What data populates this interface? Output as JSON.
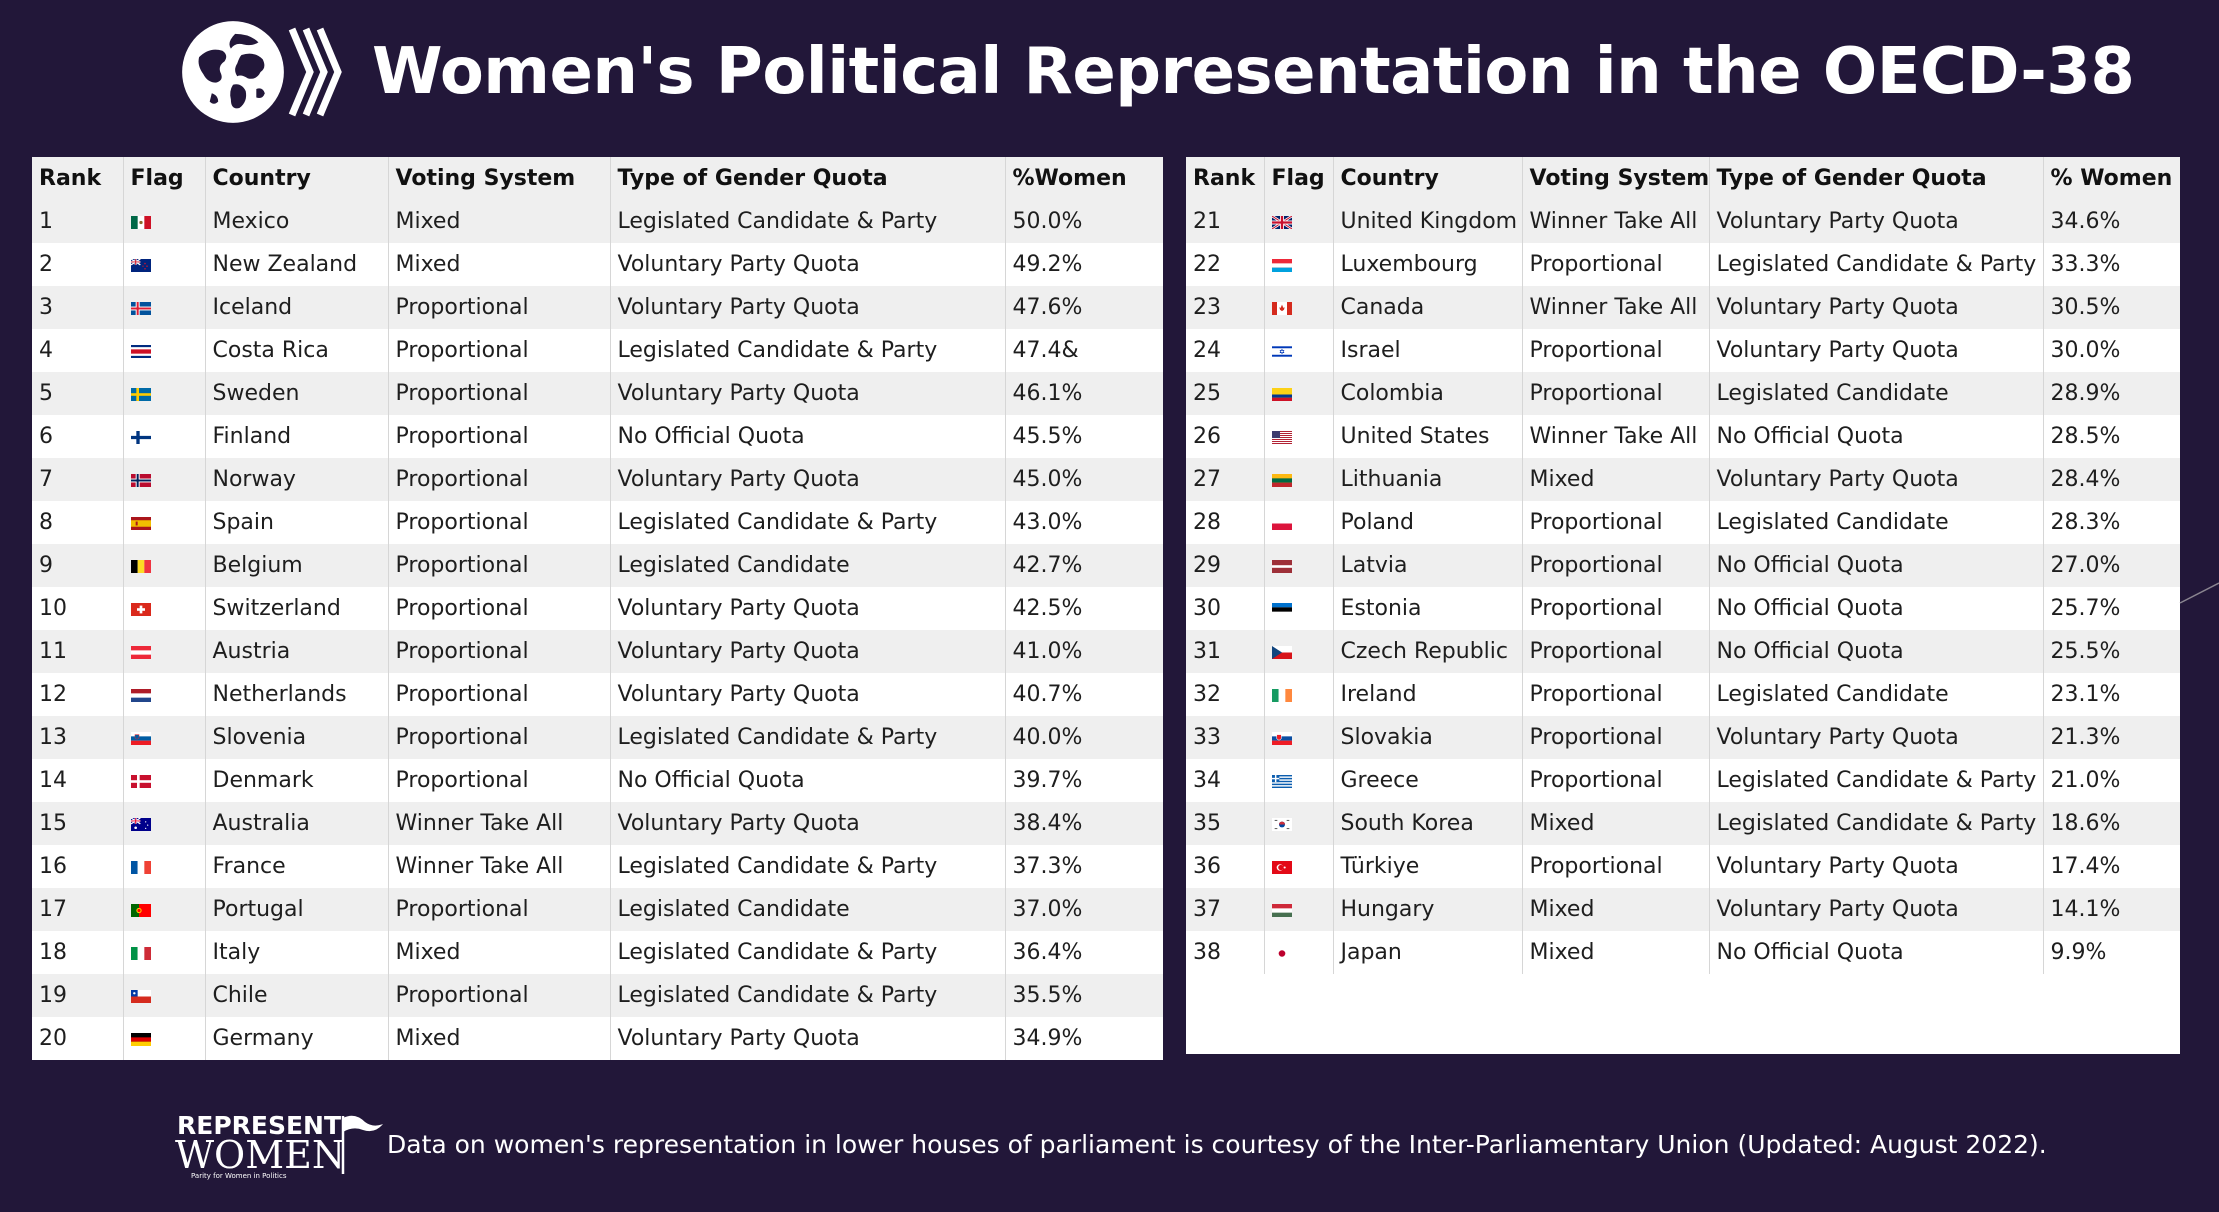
{
  "title": "Women's Political Representation in the OECD-38",
  "brand": {
    "name_line1": "REPRESENT",
    "name_line2": "WOMEN",
    "tagline": "Parity for Women in Politics"
  },
  "colors": {
    "background": "#221739",
    "row_alt": "#efefef"
  },
  "footnote": "Data on women's representation in lower houses of parliament is courtesy of the Inter-Parliamentary Union (Updated: August 2022).",
  "left_table": {
    "headers": [
      "Rank",
      "Flag",
      "Country",
      "Voting System",
      "Type of Gender Quota",
      "%Women"
    ],
    "rows": [
      {
        "rank": "1",
        "flag": "mx",
        "country": "Mexico",
        "system": "Mixed",
        "quota": "Legislated Candidate & Party",
        "pct": "50.0%"
      },
      {
        "rank": "2",
        "flag": "nz",
        "country": "New Zealand",
        "system": "Mixed",
        "quota": "Voluntary Party Quota",
        "pct": "49.2%"
      },
      {
        "rank": "3",
        "flag": "is",
        "country": "Iceland",
        "system": "Proportional",
        "quota": "Voluntary Party Quota",
        "pct": "47.6%"
      },
      {
        "rank": "4",
        "flag": "cr",
        "country": "Costa Rica",
        "system": "Proportional",
        "quota": "Legislated Candidate & Party",
        "pct": "47.4&"
      },
      {
        "rank": "5",
        "flag": "se",
        "country": "Sweden",
        "system": "Proportional",
        "quota": "Voluntary Party Quota",
        "pct": "46.1%"
      },
      {
        "rank": "6",
        "flag": "fi",
        "country": "Finland",
        "system": "Proportional",
        "quota": "No Official Quota",
        "pct": "45.5%"
      },
      {
        "rank": "7",
        "flag": "no",
        "country": "Norway",
        "system": "Proportional",
        "quota": "Voluntary Party Quota",
        "pct": "45.0%"
      },
      {
        "rank": "8",
        "flag": "es",
        "country": "Spain",
        "system": "Proportional",
        "quota": "Legislated Candidate & Party",
        "pct": "43.0%"
      },
      {
        "rank": "9",
        "flag": "be",
        "country": "Belgium",
        "system": "Proportional",
        "quota": "Legislated Candidate",
        "pct": "42.7%"
      },
      {
        "rank": "10",
        "flag": "ch",
        "country": "Switzerland",
        "system": "Proportional",
        "quota": "Voluntary Party Quota",
        "pct": "42.5%"
      },
      {
        "rank": "11",
        "flag": "at",
        "country": "Austria",
        "system": "Proportional",
        "quota": "Voluntary Party Quota",
        "pct": "41.0%"
      },
      {
        "rank": "12",
        "flag": "nl",
        "country": "Netherlands",
        "system": "Proportional",
        "quota": "Voluntary Party Quota",
        "pct": "40.7%"
      },
      {
        "rank": "13",
        "flag": "si",
        "country": "Slovenia",
        "system": "Proportional",
        "quota": "Legislated Candidate & Party",
        "pct": "40.0%"
      },
      {
        "rank": "14",
        "flag": "dk",
        "country": "Denmark",
        "system": "Proportional",
        "quota": "No Official Quota",
        "pct": "39.7%"
      },
      {
        "rank": "15",
        "flag": "au",
        "country": "Australia",
        "system": "Winner Take All",
        "quota": "Voluntary Party Quota",
        "pct": "38.4%"
      },
      {
        "rank": "16",
        "flag": "fr",
        "country": "France",
        "system": "Winner Take All",
        "quota": "Legislated Candidate & Party",
        "pct": "37.3%"
      },
      {
        "rank": "17",
        "flag": "pt",
        "country": "Portugal",
        "system": "Proportional",
        "quota": "Legislated Candidate",
        "pct": "37.0%"
      },
      {
        "rank": "18",
        "flag": "it",
        "country": "Italy",
        "system": "Mixed",
        "quota": "Legislated Candidate & Party",
        "pct": "36.4%"
      },
      {
        "rank": "19",
        "flag": "cl",
        "country": "Chile",
        "system": "Proportional",
        "quota": "Legislated Candidate & Party",
        "pct": "35.5%"
      },
      {
        "rank": "20",
        "flag": "de",
        "country": "Germany",
        "system": "Mixed",
        "quota": "Voluntary Party Quota",
        "pct": "34.9%"
      }
    ]
  },
  "right_table": {
    "headers": [
      "Rank",
      "Flag",
      "Country",
      "Voting System",
      "Type of Gender Quota",
      "% Women"
    ],
    "rows": [
      {
        "rank": "21",
        "flag": "gb",
        "country": "United Kingdom",
        "system": "Winner Take All",
        "quota": "Voluntary Party Quota",
        "pct": "34.6%"
      },
      {
        "rank": "22",
        "flag": "lu",
        "country": "Luxembourg",
        "system": "Proportional",
        "quota": "Legislated Candidate & Party",
        "pct": "33.3%"
      },
      {
        "rank": "23",
        "flag": "ca",
        "country": "Canada",
        "system": "Winner Take All",
        "quota": "Voluntary Party Quota",
        "pct": "30.5%"
      },
      {
        "rank": "24",
        "flag": "il",
        "country": "Israel",
        "system": "Proportional",
        "quota": "Voluntary Party Quota",
        "pct": "30.0%"
      },
      {
        "rank": "25",
        "flag": "co",
        "country": "Colombia",
        "system": "Proportional",
        "quota": "Legislated Candidate",
        "pct": "28.9%"
      },
      {
        "rank": "26",
        "flag": "us",
        "country": "United States",
        "system": "Winner Take All",
        "quota": "No Official Quota",
        "pct": "28.5%"
      },
      {
        "rank": "27",
        "flag": "lt",
        "country": "Lithuania",
        "system": "Mixed",
        "quota": "Voluntary Party Quota",
        "pct": "28.4%"
      },
      {
        "rank": "28",
        "flag": "pl",
        "country": "Poland",
        "system": "Proportional",
        "quota": "Legislated Candidate",
        "pct": "28.3%"
      },
      {
        "rank": "29",
        "flag": "lv",
        "country": "Latvia",
        "system": "Proportional",
        "quota": "No Official Quota",
        "pct": "27.0%"
      },
      {
        "rank": "30",
        "flag": "ee",
        "country": "Estonia",
        "system": "Proportional",
        "quota": "No Official Quota",
        "pct": "25.7%"
      },
      {
        "rank": "31",
        "flag": "cz",
        "country": "Czech Republic",
        "system": "Proportional",
        "quota": "No Official Quota",
        "pct": "25.5%"
      },
      {
        "rank": "32",
        "flag": "ie",
        "country": "Ireland",
        "system": "Proportional",
        "quota": "Legislated Candidate",
        "pct": "23.1%"
      },
      {
        "rank": "33",
        "flag": "sk",
        "country": "Slovakia",
        "system": "Proportional",
        "quota": "Voluntary Party Quota",
        "pct": "21.3%"
      },
      {
        "rank": "34",
        "flag": "gr",
        "country": "Greece",
        "system": "Proportional",
        "quota": "Legislated Candidate & Party",
        "pct": "21.0%"
      },
      {
        "rank": "35",
        "flag": "kr",
        "country": "South Korea",
        "system": "Mixed",
        "quota": "Legislated Candidate & Party",
        "pct": "18.6%"
      },
      {
        "rank": "36",
        "flag": "tr",
        "country": "Türkiye",
        "system": "Proportional",
        "quota": "Voluntary Party Quota",
        "pct": "17.4%"
      },
      {
        "rank": "37",
        "flag": "hu",
        "country": "Hungary",
        "system": "Mixed",
        "quota": "Voluntary Party Quota",
        "pct": "14.1%"
      },
      {
        "rank": "38",
        "flag": "jp",
        "country": "Japan",
        "system": "Mixed",
        "quota": "No Official Quota",
        "pct": "9.9%"
      }
    ]
  }
}
